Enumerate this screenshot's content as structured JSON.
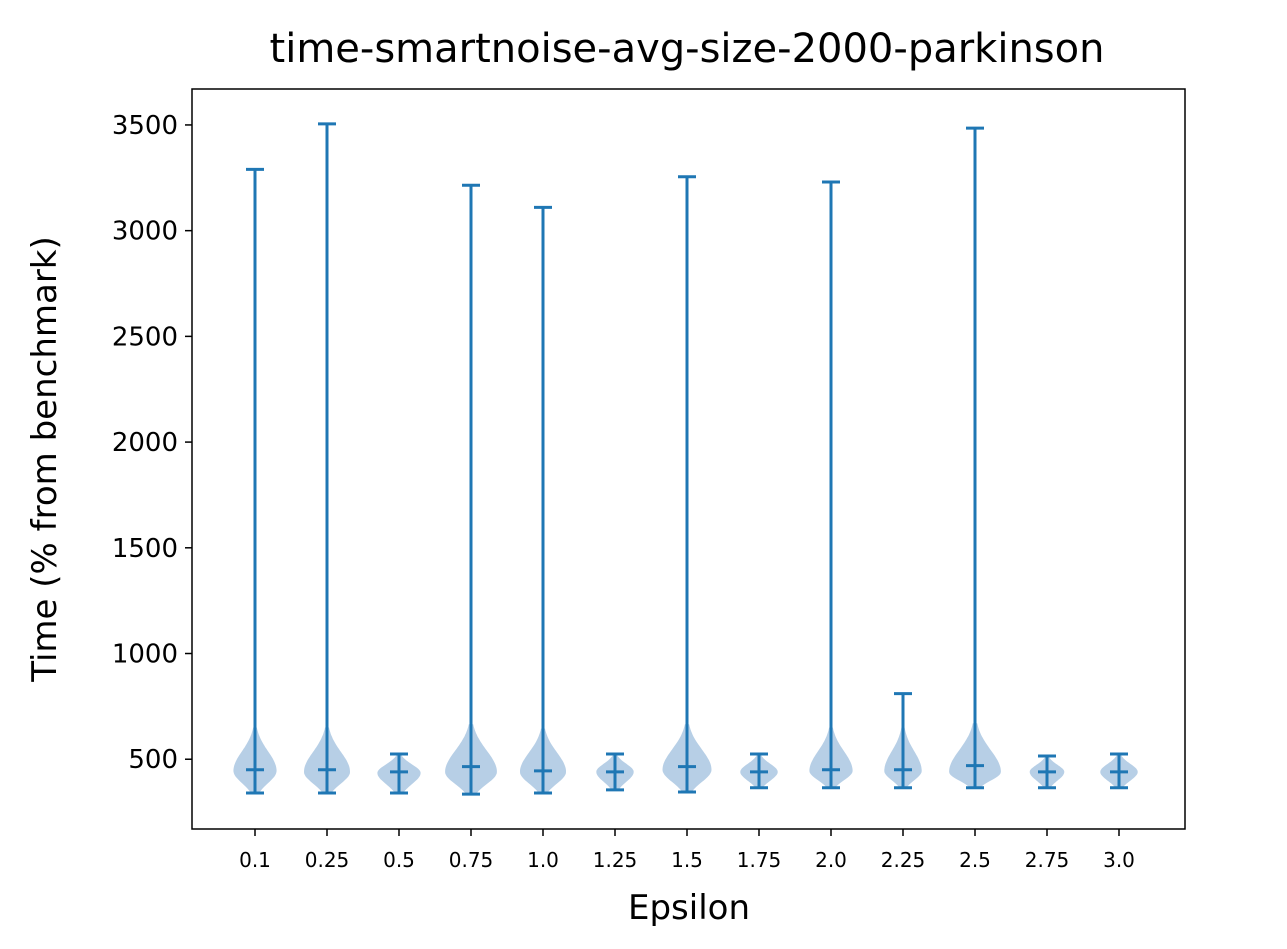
{
  "chart_data": {
    "type": "violin",
    "title": "time-smartnoise-avg-size-2000-parkinson",
    "xlabel": "Epsilon",
    "ylabel": "Time (% from benchmark)",
    "ylim": [
      170,
      3670
    ],
    "yticks": [
      500,
      1000,
      1500,
      2000,
      2500,
      3000,
      3500
    ],
    "ytick_labels": [
      "500",
      "1000",
      "1500",
      "2000",
      "2500",
      "3000",
      "3500"
    ],
    "categories": [
      "0.1",
      "0.25",
      "0.5",
      "0.75",
      "1.0",
      "1.25",
      "1.5",
      "1.75",
      "2.0",
      "2.25",
      "2.5",
      "2.75",
      "3.0"
    ],
    "series": [
      {
        "min": [
          340,
          340,
          340,
          335,
          340,
          355,
          345,
          365,
          365,
          365,
          365,
          365,
          365
        ],
        "max": [
          3290,
          3505,
          525,
          3215,
          3110,
          525,
          3255,
          525,
          3230,
          810,
          3485,
          515,
          525
        ],
        "median": [
          450,
          450,
          440,
          465,
          445,
          440,
          465,
          440,
          450,
          450,
          470,
          440,
          440
        ],
        "body_peak": [
          445,
          440,
          435,
          440,
          440,
          440,
          450,
          440,
          445,
          445,
          440,
          440,
          440
        ],
        "body_halfwidth": [
          0.3,
          0.32,
          0.3,
          0.36,
          0.32,
          0.26,
          0.34,
          0.26,
          0.3,
          0.26,
          0.36,
          0.24,
          0.26
        ]
      }
    ],
    "colors": {
      "line": "#1f77b4",
      "body": "#b7cfe6"
    },
    "grid": false,
    "legend": "none"
  }
}
